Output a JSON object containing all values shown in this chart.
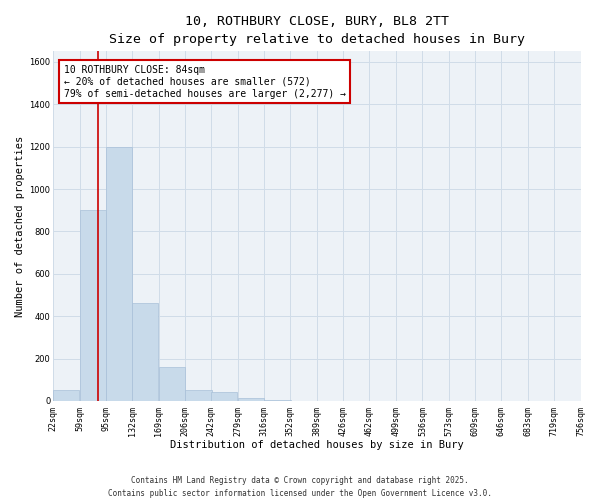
{
  "title_line1": "10, ROTHBURY CLOSE, BURY, BL8 2TT",
  "title_line2": "Size of property relative to detached houses in Bury",
  "xlabel": "Distribution of detached houses by size in Bury",
  "ylabel": "Number of detached properties",
  "bar_color": "#c8daea",
  "bar_edge_color": "#a8c0d8",
  "grid_color": "#d0dce8",
  "background_color": "#edf2f7",
  "bins": [
    22,
    59,
    95,
    132,
    169,
    206,
    242,
    279,
    316,
    352,
    389,
    426,
    462,
    499,
    536,
    573,
    609,
    646,
    683,
    719,
    756
  ],
  "counts": [
    50,
    900,
    1200,
    460,
    160,
    50,
    40,
    15,
    5,
    0,
    0,
    0,
    0,
    0,
    0,
    0,
    0,
    0,
    0,
    0
  ],
  "property_size": 84,
  "red_line_color": "#cc0000",
  "annotation_line1": "10 ROTHBURY CLOSE: 84sqm",
  "annotation_line2": "← 20% of detached houses are smaller (572)",
  "annotation_line3": "79% of semi-detached houses are larger (2,277) →",
  "ylim": [
    0,
    1650
  ],
  "yticks": [
    0,
    200,
    400,
    600,
    800,
    1000,
    1200,
    1400,
    1600
  ],
  "footnote_line1": "Contains HM Land Registry data © Crown copyright and database right 2025.",
  "footnote_line2": "Contains public sector information licensed under the Open Government Licence v3.0.",
  "title_fontsize": 9.5,
  "axis_label_fontsize": 7.5,
  "tick_fontsize": 6,
  "annotation_fontsize": 7,
  "footnote_fontsize": 5.5,
  "ylabel_fontsize": 7.5
}
